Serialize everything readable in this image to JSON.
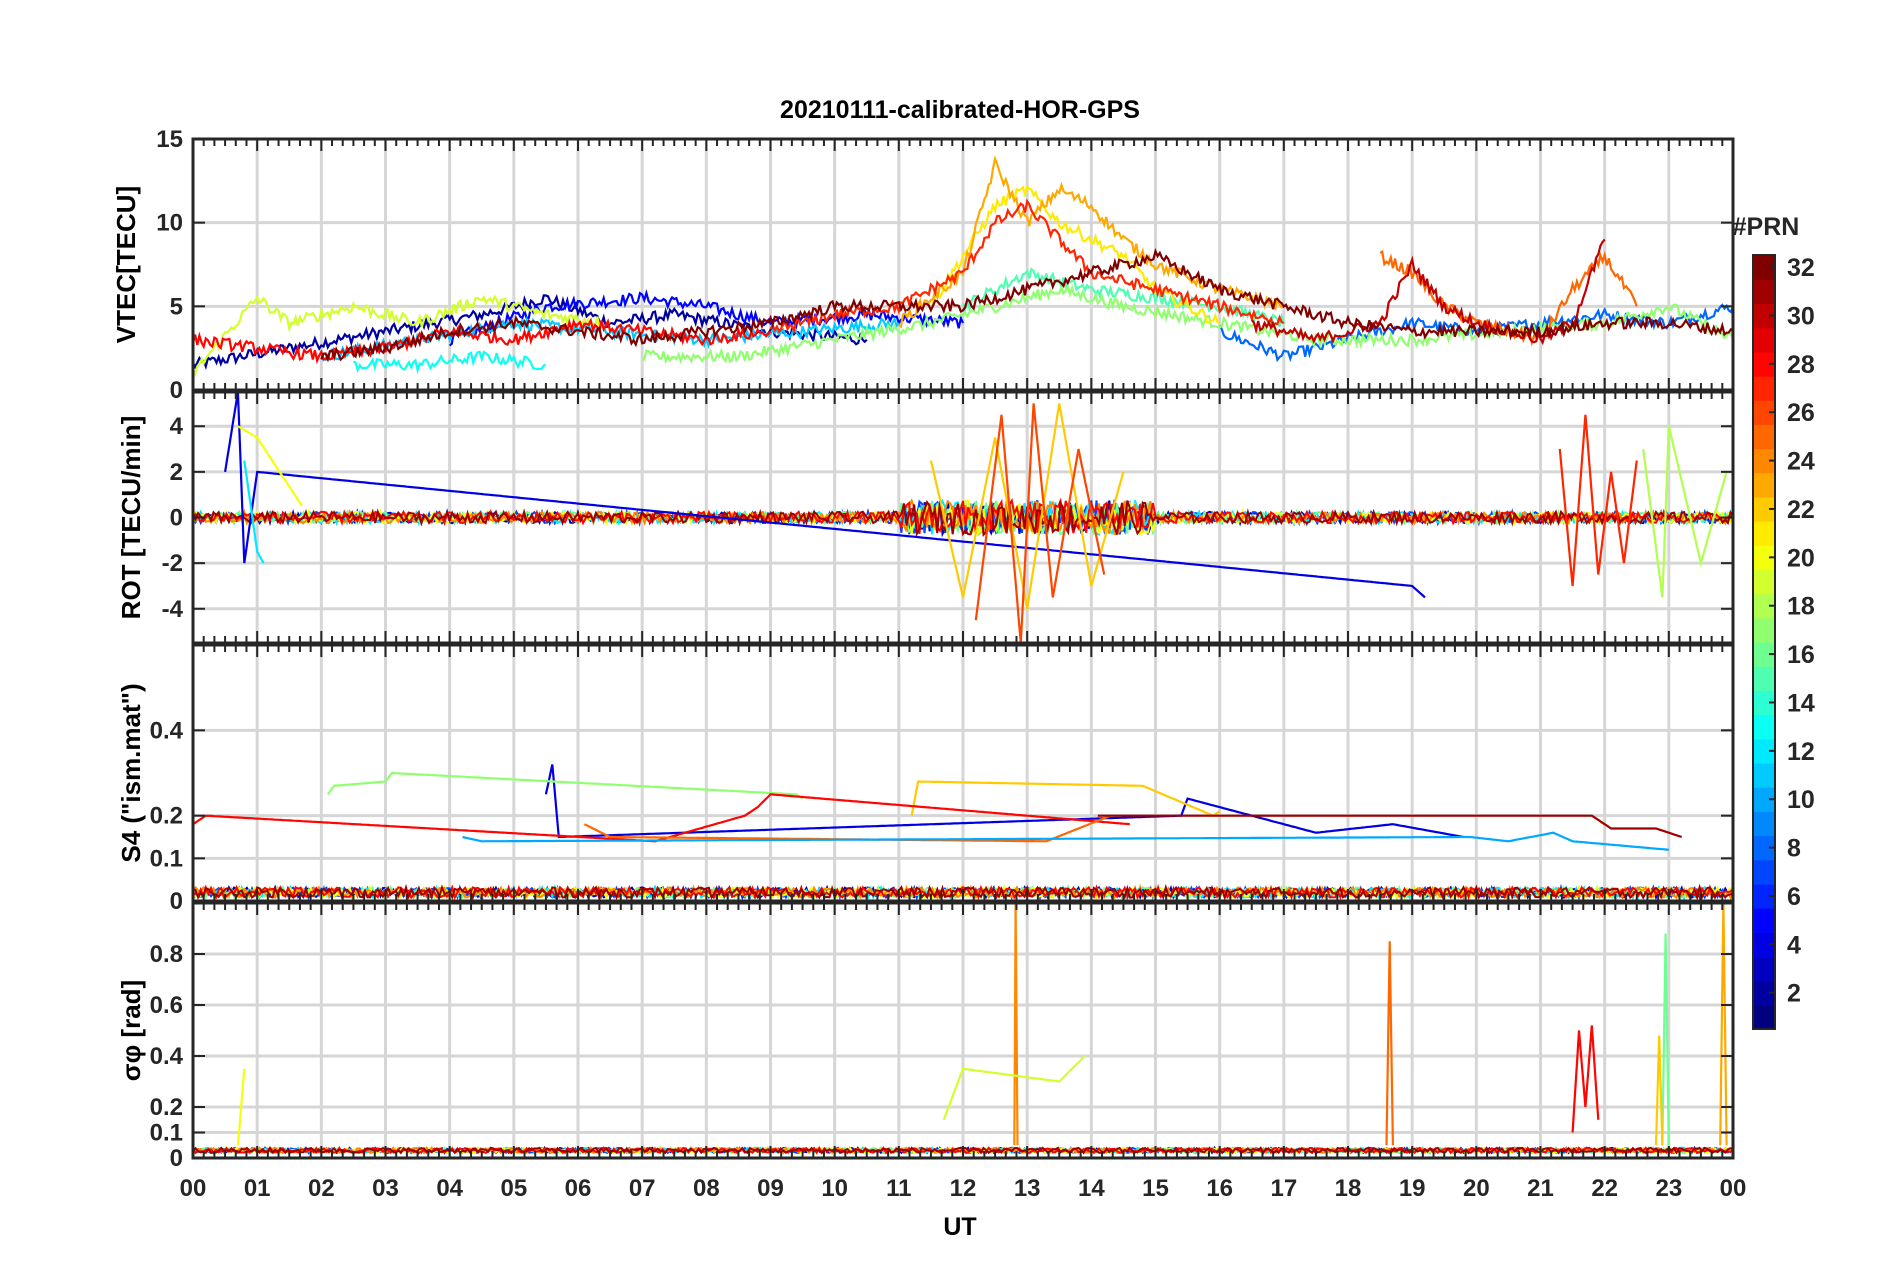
{
  "chart_data": {
    "type": "line",
    "title": "20210111-calibrated-HOR-GPS",
    "xlabel": "UT",
    "x_ticks": [
      "00",
      "01",
      "02",
      "03",
      "04",
      "05",
      "06",
      "07",
      "08",
      "09",
      "10",
      "11",
      "12",
      "13",
      "14",
      "15",
      "16",
      "17",
      "18",
      "19",
      "20",
      "21",
      "22",
      "23",
      "00"
    ],
    "xlim_hours": [
      0,
      24
    ],
    "colorbar": {
      "label": "#PRN",
      "range": [
        1,
        32
      ],
      "ticks": [
        2,
        4,
        6,
        8,
        10,
        12,
        14,
        16,
        18,
        20,
        22,
        24,
        26,
        28,
        30,
        32
      ],
      "colormap": "jet"
    },
    "panels": [
      {
        "id": "vtec",
        "ylabel": "VTEC[TECU]",
        "ylim": [
          0,
          15
        ],
        "yticks": [
          0,
          5,
          10,
          15
        ],
        "ytick_labels": [
          "0",
          "5",
          "10",
          "15"
        ],
        "traces": [
          {
            "prn": 2,
            "x": [
              0,
              1.5,
              3,
              4.5,
              5.5,
              6.5,
              7.5,
              9,
              10.5
            ],
            "y": [
              1.5,
              2.5,
              3.5,
              4.5,
              5.5,
              4.0,
              4.5,
              3.5,
              3.0
            ]
          },
          {
            "prn": 5,
            "x": [
              4,
              5.5,
              7,
              8,
              9,
              10.5,
              12
            ],
            "y": [
              3.0,
              5.0,
              5.5,
              5.0,
              4.0,
              4.5,
              4.0
            ]
          },
          {
            "prn": 8,
            "x": [
              16,
              17,
              18,
              19,
              20,
              21,
              22,
              23,
              24
            ],
            "y": [
              3.5,
              2.0,
              3.0,
              4.0,
              3.5,
              4.0,
              4.5,
              4.0,
              5.0
            ]
          },
          {
            "prn": 11,
            "x": [
              2,
              3.5,
              5,
              6.5,
              8,
              9.5,
              11
            ],
            "y": [
              2.0,
              3.0,
              4.0,
              3.5,
              3.0,
              3.5,
              4.0
            ]
          },
          {
            "prn": 13,
            "x": [
              2.5,
              3.5,
              4.5,
              5.5
            ],
            "y": [
              1.5,
              1.5,
              2.0,
              1.5
            ]
          },
          {
            "prn": 15,
            "x": [
              12,
              13,
              14,
              15,
              16,
              17
            ],
            "y": [
              5.0,
              7.0,
              6.0,
              5.5,
              5.0,
              4.0
            ]
          },
          {
            "prn": 17,
            "x": [
              7,
              8.5,
              10,
              11.5,
              12.5,
              13.5,
              14.5,
              16,
              17.5,
              19,
              20.5,
              22,
              23,
              24
            ],
            "y": [
              2.0,
              2.0,
              3.0,
              4.0,
              5.0,
              6.0,
              5.0,
              4.0,
              3.0,
              3.0,
              3.5,
              4.0,
              5.0,
              3.0
            ]
          },
          {
            "prn": 19,
            "x": [
              0,
              1,
              1.5,
              2.5,
              3.5,
              4.5,
              5.5,
              6.5
            ],
            "y": [
              1.0,
              5.5,
              4.0,
              5.0,
              4.0,
              5.5,
              4.5,
              4.0
            ]
          },
          {
            "prn": 21,
            "x": [
              11.5,
              12,
              12.5,
              13,
              13.5,
              14,
              14.5,
              15,
              16
            ],
            "y": [
              5.0,
              8.0,
              11.0,
              12.0,
              10.0,
              9.0,
              8.0,
              6.0,
              4.0
            ]
          },
          {
            "prn": 23,
            "x": [
              11,
              12,
              12.5,
              13,
              13.5,
              14,
              14.5,
              15,
              16,
              17
            ],
            "y": [
              4.0,
              7.0,
              13.5,
              10.0,
              12.0,
              11.0,
              9.0,
              7.5,
              6.0,
              5.0
            ]
          },
          {
            "prn": 25,
            "x": [
              18.5,
              19,
              19.5,
              20,
              20.5,
              21,
              21.5,
              22,
              22.5
            ],
            "y": [
              8.0,
              7.0,
              5.0,
              4.0,
              3.5,
              3.0,
              6.0,
              8.0,
              5.0
            ]
          },
          {
            "prn": 27,
            "x": [
              9,
              10,
              11,
              12,
              12.5,
              13,
              13.5,
              14,
              15,
              16,
              17
            ],
            "y": [
              3.5,
              4.5,
              5.0,
              7.0,
              10.0,
              11.0,
              9.0,
              7.0,
              6.0,
              5.0,
              4.0
            ]
          },
          {
            "prn": 28,
            "x": [
              0,
              1,
              2,
              3,
              4,
              5,
              6,
              7,
              8,
              9
            ],
            "y": [
              3.0,
              2.5,
              2.0,
              2.5,
              3.5,
              3.0,
              4.0,
              3.5,
              3.0,
              3.5
            ]
          },
          {
            "prn": 30,
            "x": [
              16.5,
              17.5,
              18.5,
              19,
              19.5,
              20,
              20.5,
              21,
              21.5,
              22
            ],
            "y": [
              4.0,
              3.0,
              4.0,
              7.5,
              5.0,
              4.0,
              3.5,
              3.0,
              4.0,
              9.0
            ]
          },
          {
            "prn": 32,
            "x": [
              2,
              3,
              4,
              5,
              6,
              7,
              8,
              9,
              10,
              11,
              12,
              13,
              14,
              15,
              16,
              17,
              18,
              19,
              20,
              21,
              22,
              23,
              24
            ],
            "y": [
              2.0,
              2.5,
              3.5,
              4.0,
              3.5,
              3.0,
              3.5,
              4.0,
              5.0,
              5.0,
              5.0,
              6.0,
              7.0,
              8.0,
              6.0,
              5.0,
              4.0,
              3.5,
              3.5,
              3.5,
              4.0,
              4.0,
              3.5
            ]
          }
        ]
      },
      {
        "id": "rot",
        "ylabel": "ROT [TECU/min]",
        "ylim": [
          -5.5,
          5.5
        ],
        "yticks": [
          -4,
          -2,
          0,
          2,
          4
        ],
        "ytick_labels": [
          "-4",
          "-2",
          "0",
          "2",
          "4"
        ],
        "traces": [
          {
            "prn": 4,
            "x": [
              0.5,
              0.7,
              0.8,
              1.0,
              19.0,
              19.2
            ],
            "y": [
              2.0,
              5.5,
              -2.0,
              2.0,
              -3.0,
              -3.5
            ]
          },
          {
            "prn": 12,
            "x": [
              0.8,
              1.0,
              1.1
            ],
            "y": [
              2.5,
              -1.5,
              -2.0
            ]
          },
          {
            "prn": 20,
            "x": [
              0.7,
              1.0,
              1.7
            ],
            "y": [
              4.0,
              3.5,
              0.5
            ]
          },
          {
            "prn": 22,
            "x": [
              11.5,
              12.0,
              12.5,
              13.0,
              13.5,
              14.0,
              14.5
            ],
            "y": [
              2.5,
              -3.5,
              3.5,
              -4.0,
              5.0,
              -3.0,
              2.0
            ]
          },
          {
            "prn": 26,
            "x": [
              12.2,
              12.6,
              12.9,
              13.1,
              13.4,
              13.8,
              14.2
            ],
            "y": [
              -4.5,
              4.5,
              -5.5,
              5.0,
              -3.5,
              3.0,
              -2.5
            ]
          },
          {
            "prn": 27,
            "x": [
              21.3,
              21.5,
              21.7,
              21.9,
              22.1,
              22.3,
              22.5
            ],
            "y": [
              3.0,
              -3.0,
              4.5,
              -2.5,
              2.0,
              -2.0,
              2.5
            ]
          },
          {
            "prn": 18,
            "x": [
              22.6,
              22.9,
              23.0,
              23.5,
              23.9
            ],
            "y": [
              3.0,
              -3.5,
              4.0,
              -2.0,
              2.0
            ]
          }
        ]
      },
      {
        "id": "s4",
        "ylabel": "S4 (\"ism.mat\")",
        "ylim": [
          0,
          0.6
        ],
        "yticks": [
          0,
          0.1,
          0.2,
          0.4
        ],
        "ytick_labels": [
          "0",
          "0.1",
          "0.2",
          "0.4"
        ],
        "traces": [
          {
            "prn": 4,
            "x": [
              5.5,
              5.6,
              5.7,
              15.4,
              15.5,
              17.5,
              18.7,
              19.8
            ],
            "y": [
              0.25,
              0.32,
              0.15,
              0.2,
              0.24,
              0.16,
              0.18,
              0.15
            ]
          },
          {
            "prn": 17,
            "x": [
              2.1,
              2.2,
              3.0,
              3.1,
              9.4,
              9.5
            ],
            "y": [
              0.25,
              0.27,
              0.28,
              0.3,
              0.25,
              0.24
            ]
          },
          {
            "prn": 22,
            "x": [
              11.2,
              11.3,
              14.8,
              15.9,
              16.0
            ],
            "y": [
              0.2,
              0.28,
              0.27,
              0.2,
              0.21
            ]
          },
          {
            "prn": 28,
            "x": [
              0.0,
              0.2,
              7.2,
              8.6,
              8.8,
              9.0,
              14.6
            ],
            "y": [
              0.18,
              0.2,
              0.14,
              0.2,
              0.22,
              0.25,
              0.18
            ]
          },
          {
            "prn": 25,
            "x": [
              6.1,
              6.5,
              13.3,
              14.3
            ],
            "y": [
              0.18,
              0.15,
              0.14,
              0.2
            ]
          },
          {
            "prn": 10,
            "x": [
              4.2,
              4.5,
              19.9,
              20.5,
              21.2,
              21.5,
              23.0
            ],
            "y": [
              0.15,
              0.14,
              0.15,
              0.14,
              0.16,
              0.14,
              0.12
            ]
          },
          {
            "prn": 31,
            "x": [
              14.1,
              21.8,
              22.1,
              22.8,
              23.2
            ],
            "y": [
              0.2,
              0.2,
              0.17,
              0.17,
              0.15
            ]
          }
        ]
      },
      {
        "id": "sigma_phi",
        "ylabel": "σφ [rad]",
        "ylim": [
          0,
          1.0
        ],
        "yticks": [
          0,
          0.1,
          0.2,
          0.4,
          0.6,
          0.8
        ],
        "ytick_labels": [
          "0",
          "0.1",
          "0.2",
          "0.4",
          "0.6",
          "0.8"
        ],
        "traces": [
          {
            "prn": 20,
            "x": [
              0.7,
              0.8
            ],
            "y": [
              0.05,
              0.35
            ]
          },
          {
            "prn": 24,
            "x": [
              12.8,
              12.82,
              12.85
            ],
            "y": [
              0.05,
              1.0,
              0.05
            ]
          },
          {
            "prn": 25,
            "x": [
              18.6,
              18.65,
              18.7
            ],
            "y": [
              0.05,
              0.85,
              0.05
            ]
          },
          {
            "prn": 28,
            "x": [
              21.5,
              21.6,
              21.7,
              21.8,
              21.9
            ],
            "y": [
              0.1,
              0.5,
              0.2,
              0.52,
              0.15
            ]
          },
          {
            "prn": 16,
            "x": [
              22.9,
              22.95,
              23.0
            ],
            "y": [
              0.05,
              0.88,
              0.05
            ]
          },
          {
            "prn": 22,
            "x": [
              22.8,
              22.85,
              22.9
            ],
            "y": [
              0.05,
              0.48,
              0.05
            ]
          },
          {
            "prn": 23,
            "x": [
              23.8,
              23.85,
              23.9
            ],
            "y": [
              0.05,
              1.0,
              0.05
            ]
          },
          {
            "prn": 19,
            "x": [
              11.7,
              12.0,
              13.5,
              13.9
            ],
            "y": [
              0.15,
              0.35,
              0.3,
              0.4
            ]
          }
        ]
      }
    ]
  }
}
